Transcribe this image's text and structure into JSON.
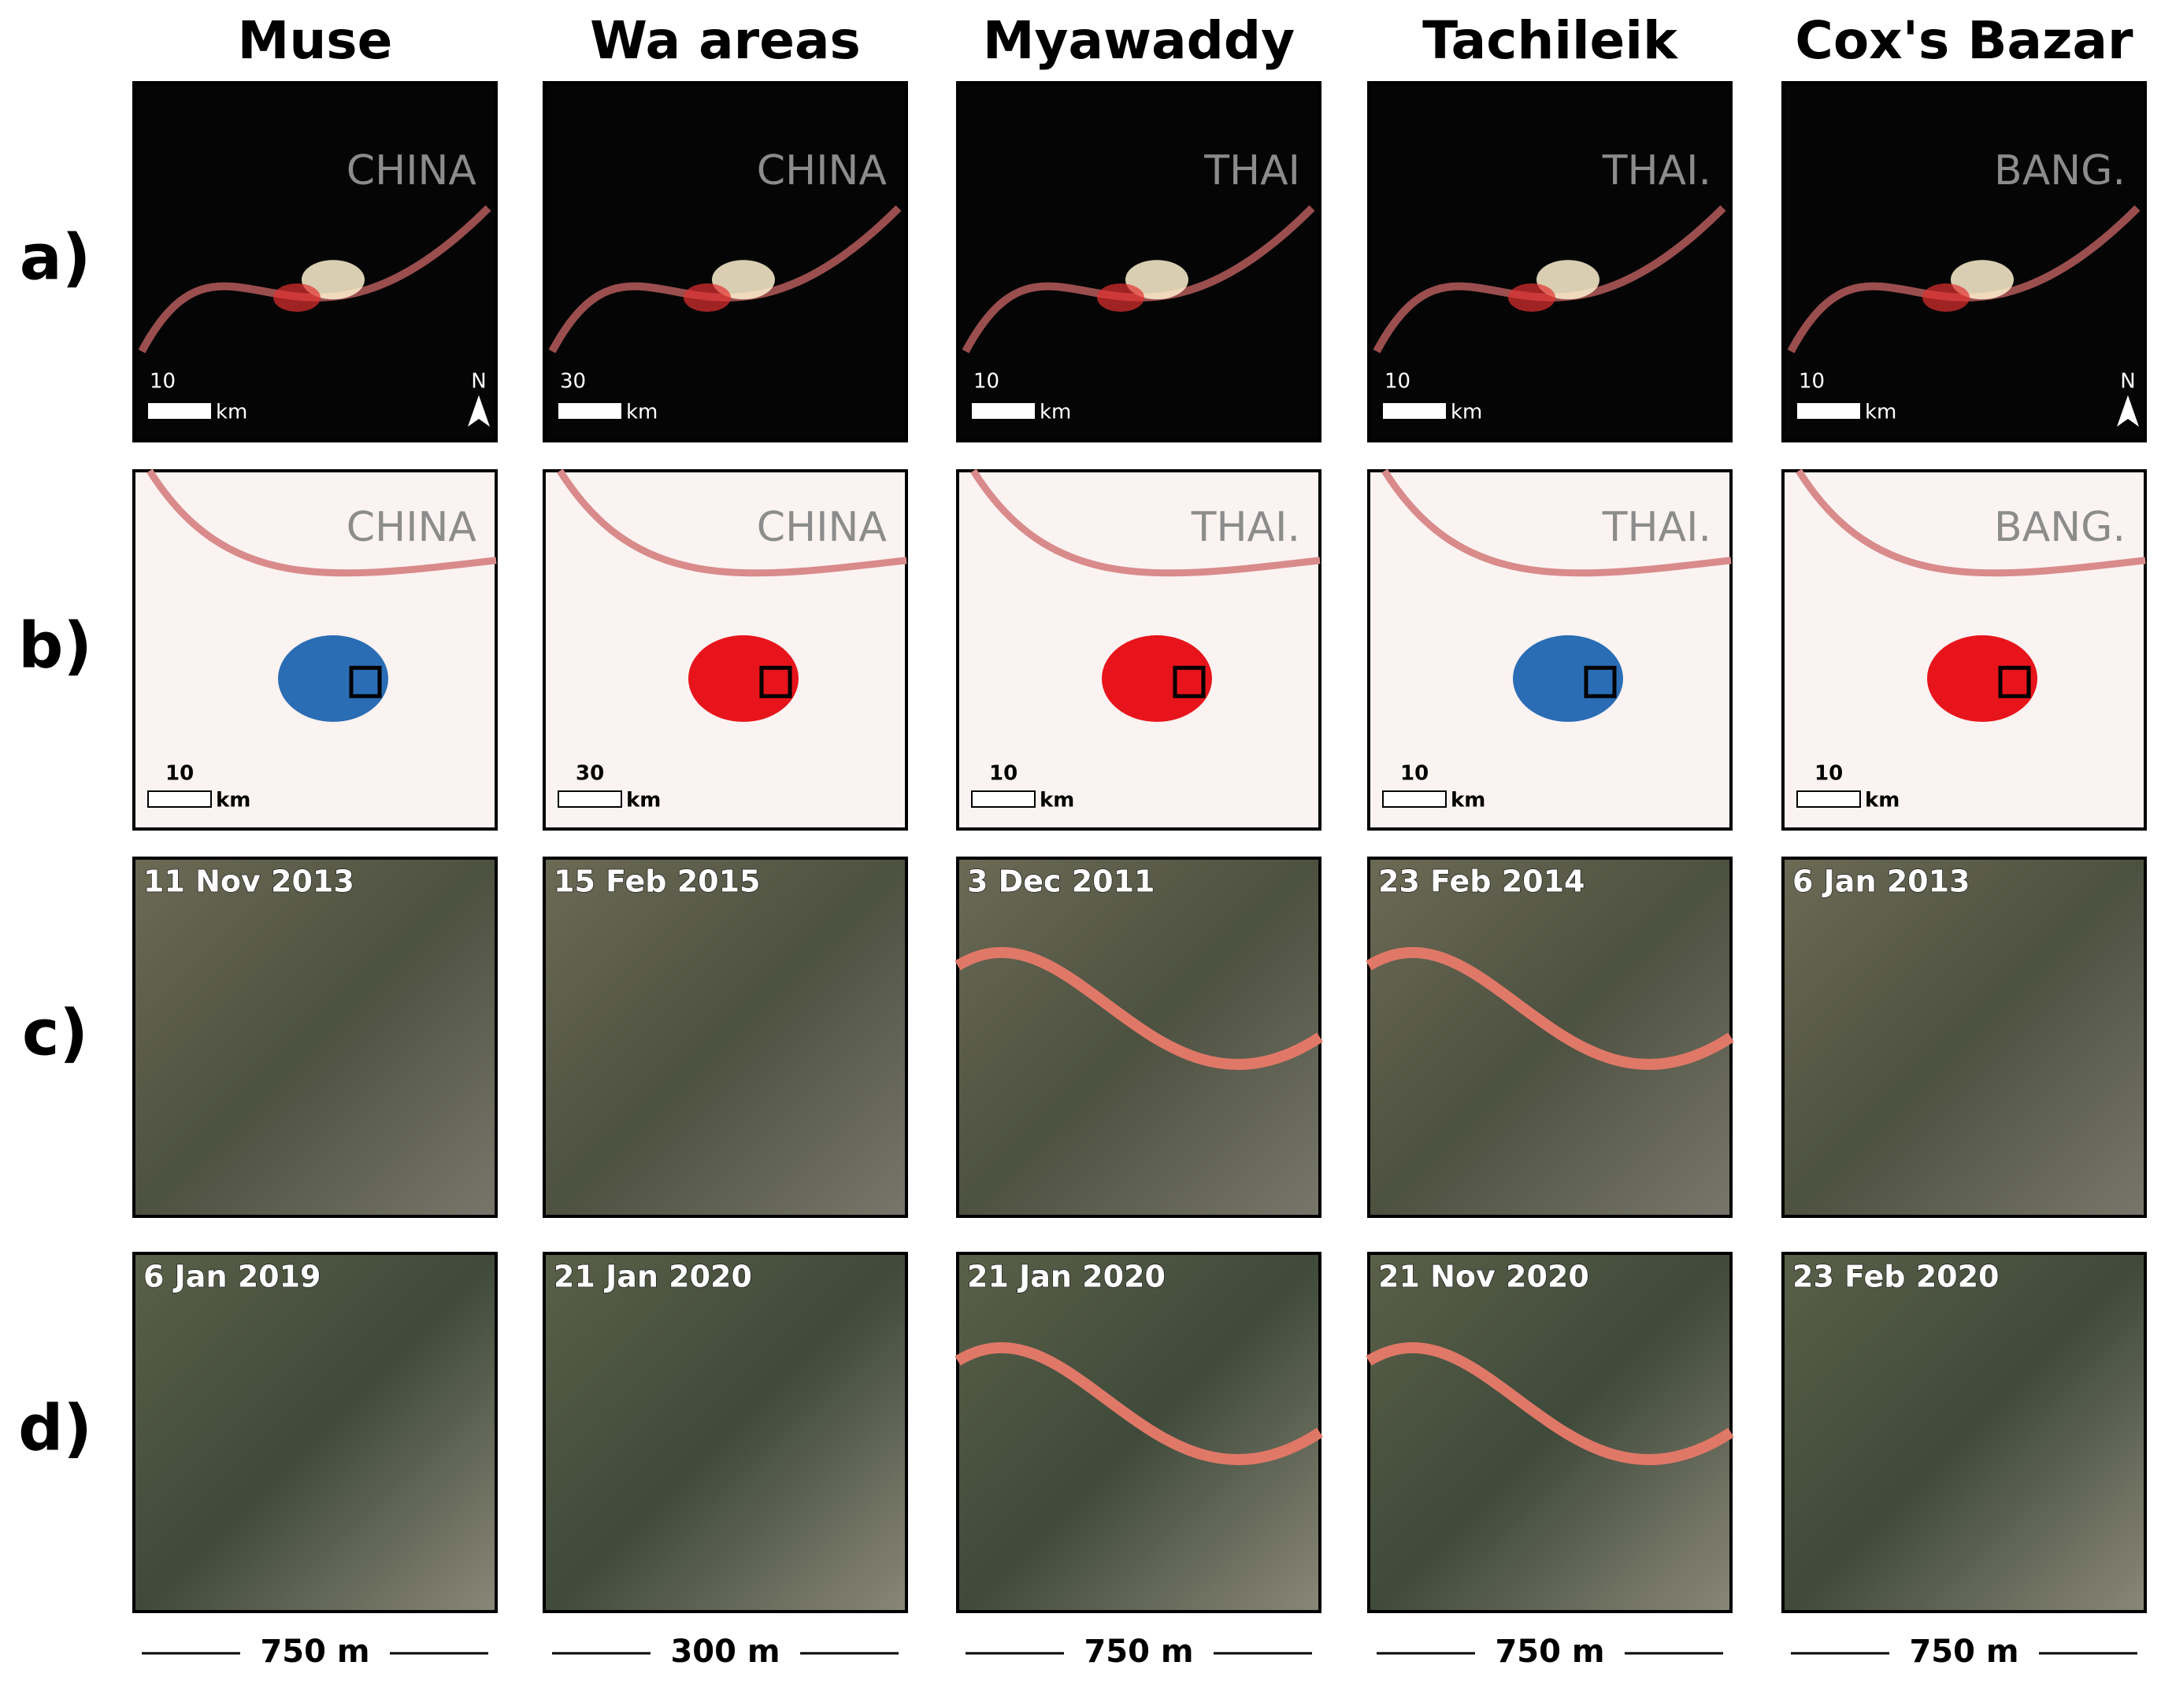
{
  "row_labels": [
    "a)",
    "b)",
    "c)",
    "d)"
  ],
  "columns": [
    {
      "title": "Muse",
      "a": {
        "label": "CHINA",
        "scale": 10,
        "unit": "km",
        "north": "N"
      },
      "b": {
        "label": "CHINA",
        "scale": 10,
        "unit": "km"
      },
      "c_date": "11 Nov 2013",
      "d_date": "6 Jan 2019",
      "scale_bar": "750 m"
    },
    {
      "title": "Wa areas",
      "a": {
        "label": "CHINA",
        "scale": 30,
        "unit": "km"
      },
      "b": {
        "label": "CHINA",
        "scale": 30,
        "unit": "km"
      },
      "c_date": "15 Feb 2015",
      "d_date": "21 Jan 2020",
      "scale_bar": "300 m"
    },
    {
      "title": "Myawaddy",
      "a": {
        "label": "THAI",
        "scale": 10,
        "unit": "km"
      },
      "b": {
        "label": "THAI.",
        "scale": 10,
        "unit": "km"
      },
      "c_date": "3 Dec 2011",
      "d_date": "21 Jan 2020",
      "scale_bar": "750 m"
    },
    {
      "title": "Tachileik",
      "a": {
        "label": "THAI.",
        "scale": 10,
        "unit": "km"
      },
      "b": {
        "label": "THAI.",
        "scale": 10,
        "unit": "km"
      },
      "c_date": "23 Feb 2014",
      "d_date": "21 Nov 2020",
      "scale_bar": "750 m"
    },
    {
      "title": "Cox's Bazar",
      "a": {
        "label": "BANG.",
        "scale": 10,
        "unit": "km",
        "north": "N"
      },
      "b": {
        "label": "BANG.",
        "scale": 10,
        "unit": "km"
      },
      "c_date": "6 Jan 2013",
      "d_date": "23 Feb 2020",
      "scale_bar": "750 m"
    }
  ]
}
